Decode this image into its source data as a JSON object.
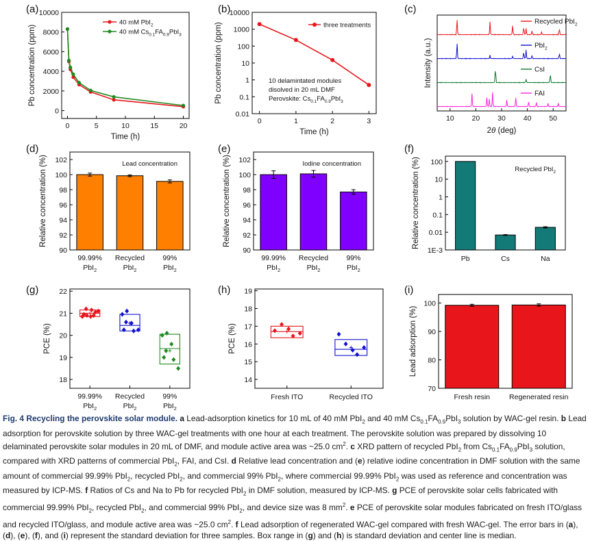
{
  "colors": {
    "red": "#e8151b",
    "green": "#1f8a1f",
    "blue": "#1010d0",
    "dkgreen": "#0a7a2a",
    "magenta": "#ff22dd",
    "orange": "#ff8000",
    "purple": "#7f00ff",
    "teal": "#137a78"
  },
  "chart_data": [
    {
      "id": "a",
      "panel_label": "(a)",
      "type": "line",
      "xlabel": "Time (h)",
      "ylabel": "Pb concentration (ppm)",
      "xlim": [
        -1,
        21
      ],
      "ylim": [
        -800,
        10000
      ],
      "xticks": [
        0,
        5,
        10,
        15,
        20
      ],
      "yticks": [
        0,
        2000,
        4000,
        6000,
        8000,
        10000
      ],
      "legend_position": "top-right",
      "series": [
        {
          "name_main": "40 mM PbI",
          "name_sub": "2",
          "name_tail": "",
          "name_tail_sub": "",
          "color": "red",
          "x": [
            0,
            0.25,
            0.5,
            1,
            2,
            4,
            8,
            20
          ],
          "y": [
            8300,
            5000,
            4200,
            3400,
            2650,
            1900,
            1100,
            400
          ]
        },
        {
          "name_main": "40 mM Cs",
          "name_sub": "0.1",
          "name_tail": "FA",
          "name_tail_sub": "0.9",
          "name_tail2": "PbI",
          "name_tail2_sub": "3",
          "color": "green",
          "x": [
            0,
            0.25,
            0.5,
            1,
            2,
            4,
            8,
            20
          ],
          "y": [
            8300,
            5100,
            4400,
            3700,
            2850,
            2050,
            1400,
            520
          ]
        }
      ]
    },
    {
      "id": "b",
      "panel_label": "(b)",
      "type": "line",
      "xlabel": "Time (h)",
      "ylabel": "Pb concentration (ppm)",
      "xlim": [
        -0.2,
        3.2
      ],
      "ylog": true,
      "ylim_exp": [
        -2,
        4
      ],
      "xticks": [
        0,
        1,
        2,
        3
      ],
      "yticks": [
        "10000",
        "1000",
        "100",
        "10",
        "1",
        "0.1",
        "0.01"
      ],
      "legend_position": "top-right",
      "series": [
        {
          "name": "three treatments",
          "color": "red",
          "x": [
            0,
            1,
            2,
            3
          ],
          "y": [
            2000,
            230,
            15,
            0.5
          ]
        }
      ],
      "annotation": [
        "10 delamintated modules",
        "disolved in 20 mL DMF",
        "Perovskite: Cs",
        "0.1",
        "FA",
        "0.9",
        "PbI",
        "3"
      ]
    },
    {
      "id": "c",
      "panel_label": "(c)",
      "type": "line",
      "xlabel_main": "2",
      "xlabel_theta": "θ",
      "xlabel_tail": " (deg)",
      "ylabel": "Intensity (a.u.)",
      "xlim": [
        5,
        55
      ],
      "xticks": [
        10,
        20,
        30,
        40,
        50
      ],
      "series": [
        {
          "name": "Recycled PbI",
          "name_sub": "2",
          "color": "red",
          "peaks": [
            [
              12.7,
              1.0
            ],
            [
              25.5,
              0.8
            ],
            [
              34.3,
              0.6
            ],
            [
              38.6,
              0.55
            ],
            [
              39.5,
              0.4
            ],
            [
              41.8,
              0.25
            ],
            [
              45.5,
              0.15
            ],
            [
              52.4,
              0.4
            ]
          ]
        },
        {
          "name": "PbI",
          "name_sub": "2",
          "color": "blue",
          "peaks": [
            [
              12.7,
              1.0
            ],
            [
              25.5,
              0.2
            ],
            [
              34.3,
              0.15
            ],
            [
              38.6,
              0.45
            ],
            [
              39.5,
              0.55
            ],
            [
              41.8,
              0.2
            ],
            [
              52.4,
              0.35
            ]
          ]
        },
        {
          "name": "CsI",
          "name_sub": "",
          "color": "dkgreen",
          "peaks": [
            [
              27.6,
              1.0
            ],
            [
              39.5,
              0.22
            ],
            [
              48.9,
              0.6
            ]
          ]
        },
        {
          "name": "FAI",
          "name_sub": "",
          "color": "magenta",
          "peaks": [
            [
              18.5,
              0.8
            ],
            [
              24.3,
              0.6
            ],
            [
              25.2,
              0.5
            ],
            [
              26.5,
              0.9
            ],
            [
              32.0,
              0.4
            ],
            [
              35.5,
              0.55
            ],
            [
              40.5,
              0.3
            ],
            [
              43.5,
              0.25
            ],
            [
              48.0,
              0.2
            ],
            [
              52.0,
              0.2
            ]
          ]
        }
      ]
    },
    {
      "id": "d",
      "panel_label": "(d)",
      "type": "bar",
      "color": "orange",
      "title": "Lead concentration",
      "ylabel": "Relative concentration (%)",
      "ylim": [
        90,
        103
      ],
      "yticks": [
        90,
        92,
        94,
        96,
        98,
        100,
        102
      ],
      "categories": [
        [
          "99.99%",
          "PbI",
          "2"
        ],
        [
          "Recycled",
          "PbI",
          "2"
        ],
        [
          "99%",
          "PbI",
          "2"
        ]
      ],
      "values": [
        100.0,
        99.85,
        99.1
      ],
      "errors": [
        0.2,
        0.12,
        0.2
      ]
    },
    {
      "id": "e",
      "panel_label": "(e)",
      "type": "bar",
      "color": "purple",
      "title": "Iodine concentration",
      "ylabel": "Relative concentration (%)",
      "ylim": [
        90,
        103
      ],
      "yticks": [
        90,
        92,
        94,
        96,
        98,
        100,
        102
      ],
      "categories": [
        [
          "99.99%",
          "PbI",
          "2"
        ],
        [
          "Recycled",
          "PbI",
          "2"
        ],
        [
          "99%",
          "PbI",
          "2"
        ]
      ],
      "values": [
        100.0,
        100.1,
        97.7
      ],
      "errors": [
        0.5,
        0.45,
        0.3
      ]
    },
    {
      "id": "f",
      "panel_label": "(f)",
      "type": "bar",
      "color": "teal",
      "ylog": true,
      "title_main": "Recycled PbI",
      "title_sub": "2",
      "ylabel": "Relative concentration (%)",
      "ylim_exp": [
        -3,
        2.3
      ],
      "yticks": [
        "100",
        "10",
        "1",
        "0.1",
        "0.01",
        "1E-3"
      ],
      "categories": [
        "Pb",
        "Cs",
        "Na"
      ],
      "values": [
        99.9,
        0.007,
        0.019
      ],
      "errors": [
        0,
        0.0004,
        0.0015
      ]
    },
    {
      "id": "g",
      "panel_label": "(g)",
      "type": "box",
      "ylabel": "PCE (%)",
      "ylim": [
        17.6,
        22.1
      ],
      "yticks": [
        18,
        19,
        20,
        21,
        22
      ],
      "categories": [
        [
          "99.99%",
          "PbI",
          "2"
        ],
        [
          "Recycled",
          "PbI",
          "2"
        ],
        [
          "99%",
          "PbI",
          "2"
        ]
      ],
      "colors": [
        "red",
        "blue",
        "green"
      ],
      "boxes": [
        {
          "q1": 20.85,
          "median": 21.0,
          "q3": 21.15,
          "mean": 21.0,
          "points": [
            20.85,
            20.9,
            21.15,
            20.9,
            21.1,
            20.95,
            21.2,
            20.85,
            21.05
          ]
        },
        {
          "q1": 20.2,
          "median": 20.45,
          "q3": 20.95,
          "mean": 20.55,
          "points": [
            20.95,
            21.1,
            20.55,
            20.2,
            20.25,
            20.25,
            20.6
          ]
        },
        {
          "q1": 18.7,
          "median": 19.4,
          "q3": 20.05,
          "mean": 19.3,
          "points": [
            20.0,
            20.1,
            19.6,
            18.9,
            18.5,
            19.0,
            19.3
          ]
        }
      ]
    },
    {
      "id": "h",
      "panel_label": "(h)",
      "type": "box",
      "ylabel": "PCE (%)",
      "ylim": [
        13.5,
        19.1
      ],
      "yticks": [
        14,
        15,
        16,
        17,
        18,
        19
      ],
      "categories": [
        "Fresh ITO",
        "Recycled ITO"
      ],
      "colors": [
        "red",
        "blue"
      ],
      "boxes": [
        {
          "q1": 16.35,
          "median": 16.7,
          "q3": 17.0,
          "mean": 16.7,
          "points": [
            16.75,
            17.1,
            16.85,
            16.45,
            16.6
          ]
        },
        {
          "q1": 15.35,
          "median": 15.7,
          "q3": 16.25,
          "mean": 15.8,
          "points": [
            16.55,
            16.0,
            15.65,
            15.4,
            15.8
          ]
        }
      ]
    },
    {
      "id": "i",
      "panel_label": "(i)",
      "type": "bar",
      "color": "red",
      "ylabel": "Lead adsorption (%)",
      "ylim": [
        70,
        103
      ],
      "yticks": [
        70,
        80,
        90,
        100
      ],
      "categories": [
        "Fresh resin",
        "Regenerated resin"
      ],
      "values": [
        99.2,
        99.3
      ],
      "errors": [
        0.35,
        0.4
      ]
    }
  ],
  "caption": {
    "label": "Fig. 4 Recycling the perovskite solar module.",
    "parts": [
      [
        "b",
        "a"
      ],
      [
        "t",
        " Lead-adsorption kinetics for 10 mL of 40 mM PbI"
      ],
      [
        "s",
        "2"
      ],
      [
        "t",
        " and 40 mM Cs"
      ],
      [
        "s",
        "0.1"
      ],
      [
        "t",
        "FA"
      ],
      [
        "s",
        "0.9"
      ],
      [
        "t",
        "PbI"
      ],
      [
        "s",
        "3"
      ],
      [
        "t",
        " solution by WAC-gel resin. "
      ],
      [
        "b",
        "b"
      ],
      [
        "t",
        " Lead adsorption for perovskite solution by three WAC-gel treatments with one hour at each treatment. The perovskite solution was prepared by dissolving 10 delaminated perovskite solar modules in 20 mL of DMF, and module active area was ~25.0 cm"
      ],
      [
        "p",
        "2"
      ],
      [
        "t",
        ". "
      ],
      [
        "b",
        "c"
      ],
      [
        "t",
        " XRD pattern of recycled PbI"
      ],
      [
        "s",
        "2"
      ],
      [
        "t",
        " from Cs"
      ],
      [
        "s",
        "0.1"
      ],
      [
        "t",
        "FA"
      ],
      [
        "s",
        "0.9"
      ],
      [
        "t",
        "PbI"
      ],
      [
        "s",
        "3"
      ],
      [
        "t",
        " solution, compared with XRD patterns of commercial PbI"
      ],
      [
        "s",
        "2"
      ],
      [
        "t",
        ", FAI, and CsI. "
      ],
      [
        "b",
        "d"
      ],
      [
        "t",
        " Relative lead concentration and ("
      ],
      [
        "b",
        "e"
      ],
      [
        "t",
        ") relative iodine concentration in DMF solution with the same amount of commercial 99.99% PbI"
      ],
      [
        "s",
        "2"
      ],
      [
        "t",
        ", recycled PbI"
      ],
      [
        "s",
        "2"
      ],
      [
        "t",
        ", and commercial 99% PbI"
      ],
      [
        "s",
        "2"
      ],
      [
        "t",
        ", where commercial 99.99% PbI"
      ],
      [
        "s",
        "2"
      ],
      [
        "t",
        " was used as reference and concentration was measured by ICP-MS. "
      ],
      [
        "b",
        "f"
      ],
      [
        "t",
        " Ratios of Cs and Na to Pb for recycled PbI"
      ],
      [
        "s",
        "2"
      ],
      [
        "t",
        " in DMF solution, measured by ICP-MS. "
      ],
      [
        "b",
        "g"
      ],
      [
        "t",
        " PCE of perovskite solar cells fabricated with commercial 99.99% PbI"
      ],
      [
        "s",
        "2"
      ],
      [
        "t",
        ", recycled PbI"
      ],
      [
        "s",
        "2"
      ],
      [
        "t",
        ", and commercial 99% PbI"
      ],
      [
        "s",
        "2"
      ],
      [
        "t",
        ", and device size was 8 mm"
      ],
      [
        "p",
        "2"
      ],
      [
        "t",
        ". "
      ],
      [
        "b",
        "e"
      ],
      [
        "t",
        " PCE of perovskite solar modules fabricated on fresh ITO/glass and recycled ITO/glass, and module active area was ~25.0 cm"
      ],
      [
        "p",
        "2"
      ],
      [
        "t",
        ". "
      ],
      [
        "b",
        "f"
      ],
      [
        "t",
        " Lead adsorption of regenerated WAC-gel compared with fresh WAC-gel. The error bars in ("
      ],
      [
        "b",
        "a"
      ],
      [
        "t",
        "), ("
      ],
      [
        "b",
        "d"
      ],
      [
        "t",
        "), ("
      ],
      [
        "b",
        "e"
      ],
      [
        "t",
        "), ("
      ],
      [
        "b",
        "f"
      ],
      [
        "t",
        "), and ("
      ],
      [
        "b",
        "i"
      ],
      [
        "t",
        ") represent the standard deviation for three samples. Box range in ("
      ],
      [
        "b",
        "g"
      ],
      [
        "t",
        ") and ("
      ],
      [
        "b",
        "h"
      ],
      [
        "t",
        ") is standard deviation and center line is median."
      ]
    ]
  }
}
